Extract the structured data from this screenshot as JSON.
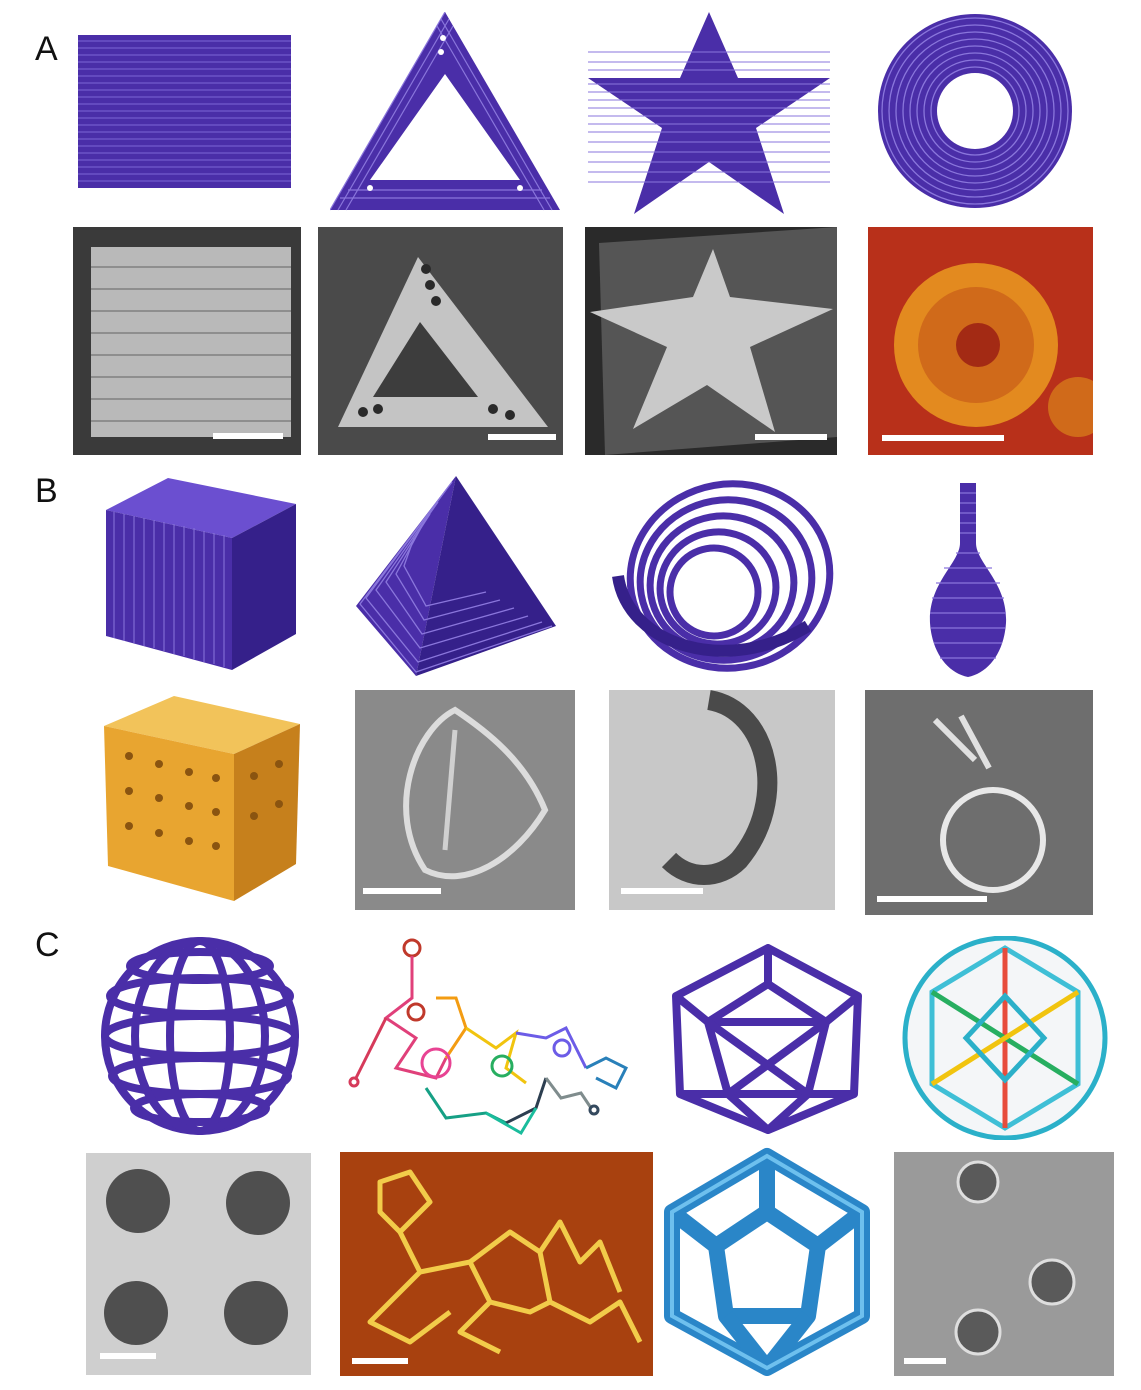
{
  "figure": {
    "panels": [
      {
        "label": "A",
        "row1": [
          "rectangle-model",
          "triangle-model",
          "star-model",
          "ring-model"
        ],
        "row2": [
          "rectangle-tem",
          "triangle-tem",
          "star-tem",
          "ring-afm"
        ]
      },
      {
        "label": "B",
        "row1": [
          "cube-model",
          "pyramid-model",
          "twisted-ring-model",
          "vase-model"
        ],
        "row2": [
          "cube-cryo-map",
          "pyramid-tem",
          "twisted-ring-tem",
          "vase-tem"
        ]
      },
      {
        "label": "C",
        "row1": [
          "wireframe-sphere-model",
          "rna-origami-schematic",
          "icosahedron-model",
          "icosahedron-helix-model"
        ],
        "row2": [
          "sphere-tem",
          "rna-origami-afm",
          "icosahedron-cryo-map",
          "icosahedron-tem"
        ]
      }
    ],
    "colors": {
      "model_purple": "#4a2ea8",
      "model_purple_dark": "#2e1c78",
      "afm_red": "#b8301a",
      "afm_orange": "#e38a1f",
      "cryo_gold": "#e8a530",
      "cryo_blue": "#2a86c8",
      "scalebar": "#ffffff"
    }
  }
}
